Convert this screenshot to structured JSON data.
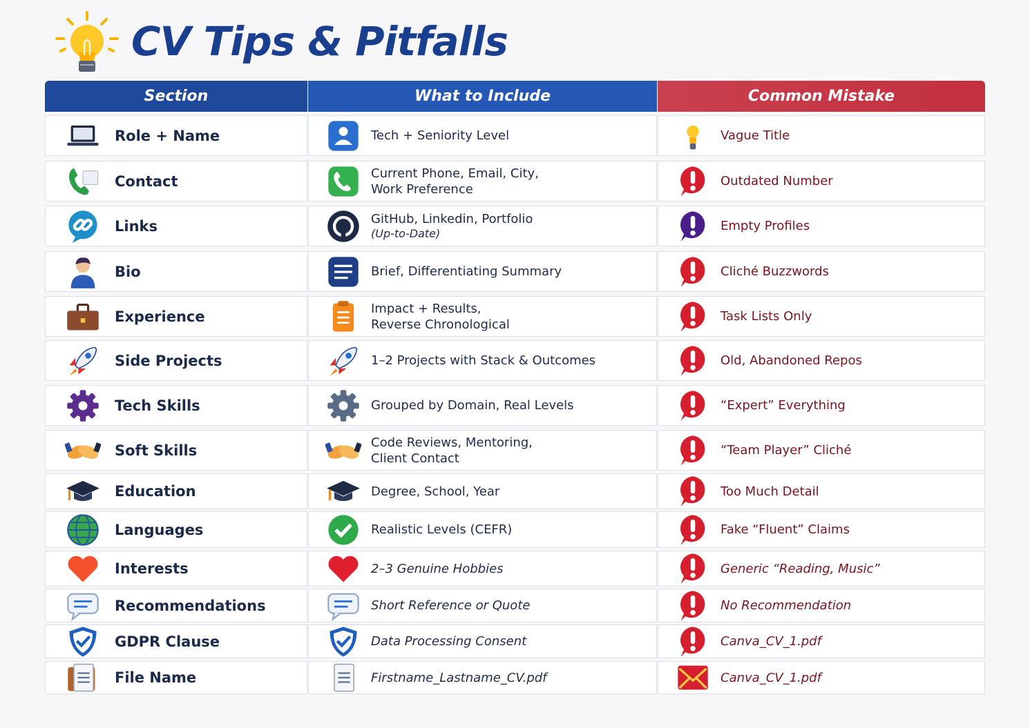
{
  "title": "CV Tips & Pitfalls",
  "table": {
    "headers": [
      "Section",
      "What to Include",
      "Common Mistake"
    ],
    "rows": [
      {
        "section": "Role + Name",
        "include": [
          "Tech + Seniority Level"
        ],
        "mistake": "Vague Title"
      },
      {
        "section": "Contact",
        "include": [
          "Current Phone, Email, City,",
          "Work Preference"
        ],
        "mistake": "Outdated Number"
      },
      {
        "section": "Links",
        "include": [
          "GitHub, Linkedin, Portfolio"
        ],
        "note": "(Up-to-Date)",
        "mistake": "Empty Profiles"
      },
      {
        "section": "Bio",
        "include": [
          "Brief, Differentiating Summary"
        ],
        "mistake": "Cliché Buzzwords"
      },
      {
        "section": "Experience",
        "include": [
          "Impact + Results,",
          "Reverse Chronological"
        ],
        "mistake": "Task Lists Only"
      },
      {
        "section": "Side Projects",
        "include": [
          "1–2 Projects with Stack & Outcomes"
        ],
        "mistake": "Old, Abandoned Repos"
      },
      {
        "section": "Tech Skills",
        "include": [
          "Grouped by Domain, Real Levels"
        ],
        "mistake": "“Expert” Everything"
      },
      {
        "section": "Soft Skills",
        "include": [
          "Code Reviews, Mentoring,",
          "Client Contact"
        ],
        "mistake": "“Team Player” Cliché"
      },
      {
        "section": "Education",
        "include": [
          "Degree, School, Year"
        ],
        "mistake": "Too Much Detail"
      },
      {
        "section": "Languages",
        "include": [
          "Realistic Levels (CEFR)"
        ],
        "mistake": "Fake “Fluent” Claims"
      },
      {
        "section": "Interests",
        "include": [
          "2–3 Genuine Hobbies"
        ],
        "mistake": "Generic “Reading, Music”",
        "italic": true
      },
      {
        "section": "Recommendations",
        "include": [
          "Short Reference or Quote"
        ],
        "mistake": "No Recommendation",
        "italic": true
      },
      {
        "section": "GDPR Clause",
        "include": [
          "Data Processing Consent"
        ],
        "mistake": "Canva_CV_1.pdf",
        "italic": true
      },
      {
        "section": "File Name",
        "include": [
          "Firstname_Lastname_CV.pdf"
        ],
        "mistake": "Canva_CV_1.pdf",
        "italic": true
      }
    ]
  }
}
